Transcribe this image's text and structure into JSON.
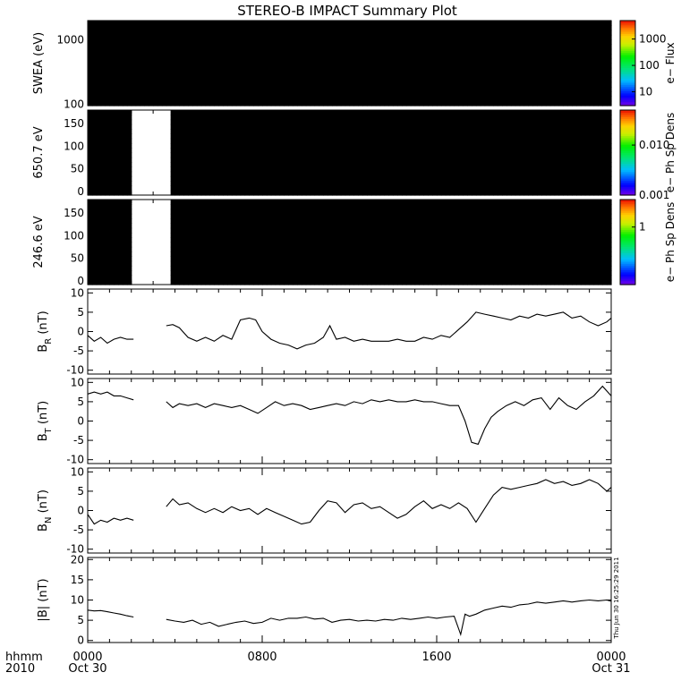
{
  "title": "STEREO-B IMPACT Summary Plot",
  "stamp": "Thu Jun 30 16:25:29 2011",
  "time_axis": {
    "ticks": [
      {
        "hours": 0,
        "line1": "0000",
        "line2": "Oct 30"
      },
      {
        "hours": 8,
        "line1": "0800",
        "line2": ""
      },
      {
        "hours": 16,
        "line1": "1600",
        "line2": ""
      },
      {
        "hours": 24,
        "line1": "0000",
        "line2": "Oct 31"
      }
    ],
    "format_line1": "hhmm",
    "format_line2": "2010",
    "range_hours": [
      0,
      24
    ]
  },
  "chart_data": [
    {
      "type": "heatmap",
      "id": "swea",
      "ylabel": "SWEA (eV)",
      "yscale": "log",
      "ylim": [
        95,
        2000
      ],
      "yticks": [
        {
          "v": 100,
          "label": "100"
        },
        {
          "v": 1000,
          "label": "1000"
        }
      ],
      "colorbar_label": "e−  Flux",
      "colorbar_scale": "log",
      "colorbar_range": [
        3,
        5000
      ],
      "colorbar_ticks": [
        {
          "v": 10,
          "label": "10"
        },
        {
          "v": 100,
          "label": "100"
        },
        {
          "v": 1000,
          "label": "1000"
        }
      ],
      "data_gaps_hours": []
    },
    {
      "type": "heatmap",
      "id": "pad650",
      "ylabel": "650.7 eV",
      "ylim": [
        -8,
        180
      ],
      "yticks": [
        {
          "v": 0,
          "label": "0"
        },
        {
          "v": 50,
          "label": "50"
        },
        {
          "v": 100,
          "label": "100"
        },
        {
          "v": 150,
          "label": "150"
        }
      ],
      "colorbar_label": "e−  Ph Sp Dens",
      "colorbar_scale": "log",
      "colorbar_range": [
        0.001,
        0.05
      ],
      "colorbar_ticks": [
        {
          "v": 0.001,
          "label": "0.001"
        },
        {
          "v": 0.01,
          "label": "0.010"
        }
      ],
      "data_gaps_hours": [
        [
          2.1,
          3.7
        ]
      ]
    },
    {
      "type": "heatmap",
      "id": "pad246",
      "ylabel": "246.6 eV",
      "ylim": [
        -8,
        180
      ],
      "yticks": [
        {
          "v": 0,
          "label": "0"
        },
        {
          "v": 50,
          "label": "50"
        },
        {
          "v": 100,
          "label": "100"
        },
        {
          "v": 150,
          "label": "150"
        }
      ],
      "colorbar_label": "e−  Ph Sp Dens",
      "colorbar_scale": "log",
      "colorbar_range": [
        0.1,
        3
      ],
      "colorbar_ticks": [
        {
          "v": 1,
          "label": "1"
        }
      ],
      "data_gaps_hours": [
        [
          2.1,
          3.7
        ]
      ]
    },
    {
      "type": "line",
      "id": "br",
      "ylabel_main": "B",
      "ylabel_sub": "R",
      "ylabel_unit": " (nT)",
      "ylim": [
        -11,
        11
      ],
      "yticks": [
        -10,
        -5,
        0,
        5,
        10
      ],
      "x": [
        0.0,
        0.3,
        0.6,
        0.9,
        1.2,
        1.5,
        1.8,
        2.1,
        3.6,
        3.9,
        4.2,
        4.6,
        5.0,
        5.4,
        5.8,
        6.2,
        6.6,
        7.0,
        7.4,
        7.7,
        8.0,
        8.4,
        8.8,
        9.2,
        9.6,
        10.0,
        10.4,
        10.8,
        11.1,
        11.4,
        11.8,
        12.2,
        12.6,
        13.0,
        13.4,
        13.8,
        14.2,
        14.6,
        15.0,
        15.4,
        15.8,
        16.2,
        16.6,
        17.0,
        17.4,
        17.8,
        18.2,
        18.6,
        19.0,
        19.4,
        19.8,
        20.2,
        20.6,
        21.0,
        21.4,
        21.8,
        22.2,
        22.6,
        23.0,
        23.4,
        23.8,
        24.0
      ],
      "y": [
        -1.0,
        -2.5,
        -1.5,
        -3.0,
        -2.0,
        -1.5,
        -2.0,
        -2.0,
        1.5,
        1.8,
        1.0,
        -1.5,
        -2.5,
        -1.5,
        -2.5,
        -1.0,
        -2.0,
        3.0,
        3.5,
        3.0,
        0.0,
        -2.0,
        -3.0,
        -3.5,
        -4.5,
        -3.5,
        -3.0,
        -1.5,
        1.5,
        -2.0,
        -1.5,
        -2.5,
        -2.0,
        -2.5,
        -2.5,
        -2.5,
        -2.0,
        -2.5,
        -2.5,
        -1.5,
        -2.0,
        -1.0,
        -1.5,
        0.5,
        2.5,
        5.0,
        4.5,
        4.0,
        3.5,
        3.0,
        4.0,
        3.5,
        4.5,
        4.0,
        4.5,
        5.0,
        3.5,
        4.0,
        2.5,
        1.5,
        2.5,
        3.5
      ]
    },
    {
      "type": "line",
      "id": "bt",
      "ylabel_main": "B",
      "ylabel_sub": "T",
      "ylabel_unit": " (nT)",
      "ylim": [
        -11,
        11
      ],
      "yticks": [
        -10,
        -5,
        0,
        5,
        10
      ],
      "x": [
        0.0,
        0.3,
        0.6,
        0.9,
        1.2,
        1.5,
        1.8,
        2.1,
        3.6,
        3.9,
        4.2,
        4.6,
        5.0,
        5.4,
        5.8,
        6.2,
        6.6,
        7.0,
        7.4,
        7.8,
        8.2,
        8.6,
        9.0,
        9.4,
        9.8,
        10.2,
        10.6,
        11.0,
        11.4,
        11.8,
        12.2,
        12.6,
        13.0,
        13.4,
        13.8,
        14.2,
        14.6,
        15.0,
        15.4,
        15.8,
        16.2,
        16.6,
        17.0,
        17.3,
        17.6,
        17.9,
        18.2,
        18.5,
        18.8,
        19.2,
        19.6,
        20.0,
        20.4,
        20.8,
        21.2,
        21.6,
        22.0,
        22.4,
        22.8,
        23.2,
        23.6,
        24.0
      ],
      "y": [
        7.0,
        7.5,
        7.0,
        7.5,
        6.5,
        6.5,
        6.0,
        5.5,
        5.0,
        3.5,
        4.5,
        4.0,
        4.5,
        3.5,
        4.5,
        4.0,
        3.5,
        4.0,
        3.0,
        2.0,
        3.5,
        5.0,
        4.0,
        4.5,
        4.0,
        3.0,
        3.5,
        4.0,
        4.5,
        4.0,
        5.0,
        4.5,
        5.5,
        5.0,
        5.5,
        5.0,
        5.0,
        5.5,
        5.0,
        5.0,
        4.5,
        4.0,
        4.0,
        0.0,
        -5.5,
        -6.0,
        -2.0,
        1.0,
        2.5,
        4.0,
        5.0,
        4.0,
        5.5,
        6.0,
        3.0,
        6.0,
        4.0,
        3.0,
        5.0,
        6.5,
        9.0,
        6.5
      ]
    },
    {
      "type": "line",
      "id": "bn",
      "ylabel_main": "B",
      "ylabel_sub": "N",
      "ylabel_unit": " (nT)",
      "ylim": [
        -11,
        11
      ],
      "yticks": [
        -10,
        -5,
        0,
        5,
        10
      ],
      "x": [
        0.0,
        0.3,
        0.6,
        0.9,
        1.2,
        1.5,
        1.8,
        2.1,
        3.6,
        3.9,
        4.2,
        4.6,
        5.0,
        5.4,
        5.8,
        6.2,
        6.6,
        7.0,
        7.4,
        7.8,
        8.2,
        8.6,
        9.0,
        9.4,
        9.8,
        10.2,
        10.6,
        11.0,
        11.4,
        11.8,
        12.2,
        12.6,
        13.0,
        13.4,
        13.8,
        14.2,
        14.6,
        15.0,
        15.4,
        15.8,
        16.2,
        16.6,
        17.0,
        17.4,
        17.8,
        18.2,
        18.6,
        19.0,
        19.4,
        19.8,
        20.2,
        20.6,
        21.0,
        21.4,
        21.8,
        22.2,
        22.6,
        23.0,
        23.4,
        23.8,
        24.0
      ],
      "y": [
        -1.0,
        -3.5,
        -2.5,
        -3.0,
        -2.0,
        -2.5,
        -2.0,
        -2.5,
        1.0,
        3.0,
        1.5,
        2.0,
        0.5,
        -0.5,
        0.5,
        -0.5,
        1.0,
        0.0,
        0.5,
        -1.0,
        0.5,
        -0.5,
        -1.5,
        -2.5,
        -3.5,
        -3.0,
        0.0,
        2.5,
        2.0,
        -0.5,
        1.5,
        2.0,
        0.5,
        1.0,
        -0.5,
        -2.0,
        -1.0,
        1.0,
        2.5,
        0.5,
        1.5,
        0.5,
        2.0,
        0.5,
        -3.0,
        0.5,
        4.0,
        6.0,
        5.5,
        6.0,
        6.5,
        7.0,
        8.0,
        7.0,
        7.5,
        6.5,
        7.0,
        8.0,
        7.0,
        5.0,
        6.0
      ]
    },
    {
      "type": "line",
      "id": "bmag",
      "ylabel": "|B| (nT)",
      "ylim": [
        -0.5,
        20.5
      ],
      "yticks": [
        0,
        5,
        10,
        15,
        20
      ],
      "x": [
        0.0,
        0.3,
        0.6,
        0.9,
        1.2,
        1.5,
        1.8,
        2.1,
        3.6,
        4.0,
        4.4,
        4.8,
        5.2,
        5.6,
        6.0,
        6.4,
        6.8,
        7.2,
        7.6,
        8.0,
        8.4,
        8.8,
        9.2,
        9.6,
        10.0,
        10.4,
        10.8,
        11.2,
        11.6,
        12.0,
        12.4,
        12.8,
        13.2,
        13.6,
        14.0,
        14.4,
        14.8,
        15.2,
        15.6,
        16.0,
        16.4,
        16.8,
        17.1,
        17.3,
        17.5,
        17.8,
        18.2,
        18.6,
        19.0,
        19.4,
        19.8,
        20.2,
        20.6,
        21.0,
        21.4,
        21.8,
        22.2,
        22.6,
        23.0,
        23.4,
        23.8,
        24.0
      ],
      "y": [
        7.5,
        7.3,
        7.4,
        7.1,
        6.8,
        6.5,
        6.1,
        5.8,
        5.2,
        4.8,
        4.5,
        5.0,
        4.0,
        4.5,
        3.5,
        4.0,
        4.5,
        4.8,
        4.2,
        4.5,
        5.5,
        5.0,
        5.5,
        5.5,
        5.8,
        5.3,
        5.5,
        4.5,
        5.0,
        5.2,
        4.8,
        5.0,
        4.8,
        5.2,
        5.0,
        5.5,
        5.2,
        5.5,
        5.8,
        5.5,
        5.8,
        6.0,
        1.5,
        6.5,
        6.0,
        6.5,
        7.5,
        8.0,
        8.5,
        8.2,
        8.8,
        9.0,
        9.5,
        9.2,
        9.5,
        9.8,
        9.5,
        9.8,
        10.0,
        9.8,
        10.0,
        9.7
      ]
    }
  ]
}
